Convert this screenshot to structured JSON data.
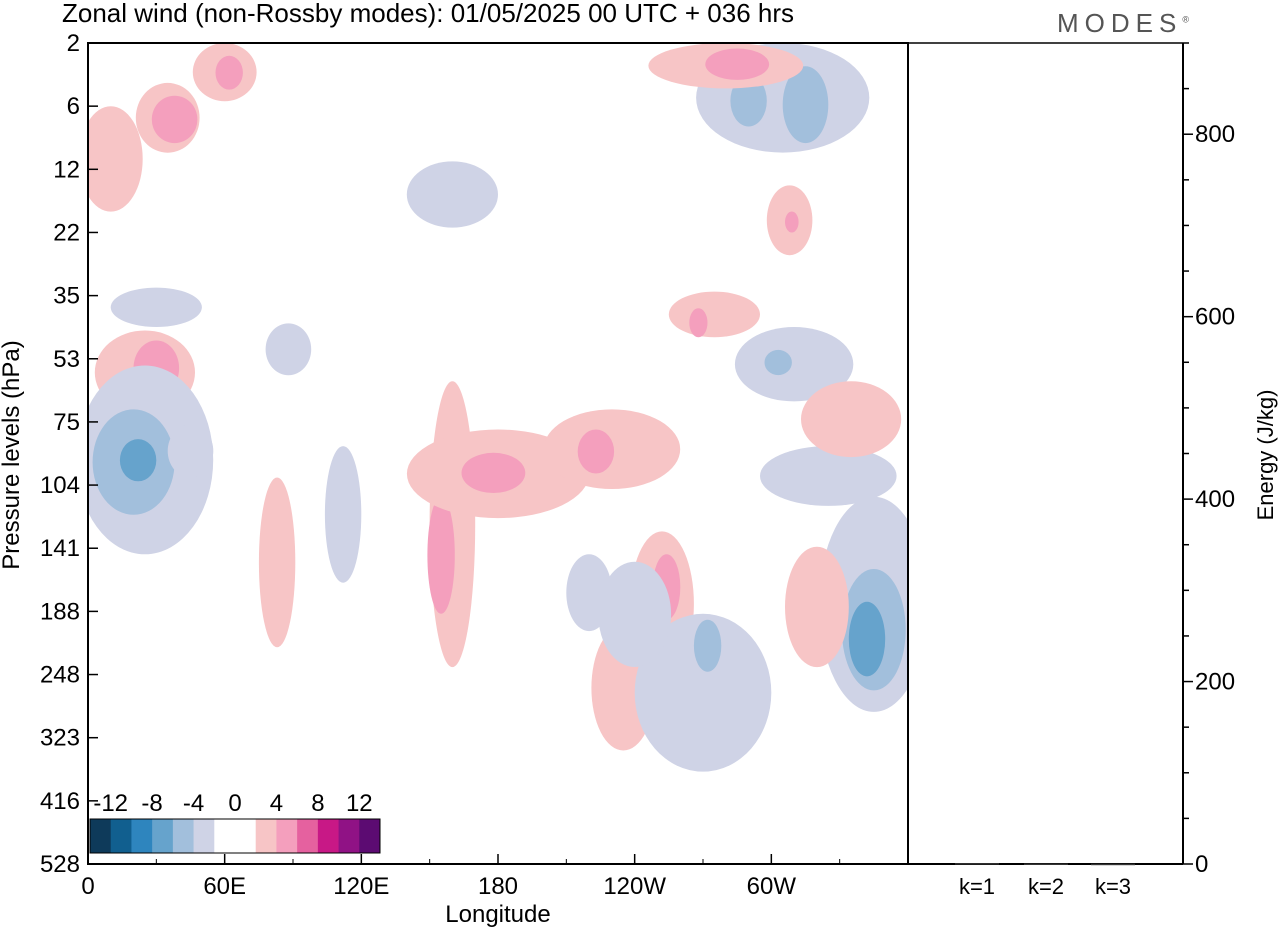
{
  "header": {
    "title": "Zonal wind (non-Rossby modes):  01/05/2025  00 UTC  + 036 hrs",
    "brand": "MODES",
    "brand_mark": "®"
  },
  "chart_data": [
    {
      "type": "heatmap",
      "title": "Zonal wind (non-Rossby modes):  01/05/2025  00 UTC  + 036 hrs",
      "xlabel": "Longitude",
      "ylabel": "Pressure levels (hPa)",
      "x_ticks": [
        "0",
        "60E",
        "120E",
        "180",
        "120W",
        "60W"
      ],
      "x_tick_deg": [
        0,
        60,
        120,
        180,
        240,
        300
      ],
      "xlim_deg": [
        0,
        360
      ],
      "y_ticks": [
        "2",
        "6",
        "12",
        "22",
        "35",
        "53",
        "75",
        "104",
        "141",
        "188",
        "248",
        "323",
        "416",
        "528"
      ],
      "colorbar": {
        "labels": [
          "-12",
          "-8",
          "-4",
          "0",
          "4",
          "8",
          "12"
        ],
        "colors": [
          "#0e3a5a",
          "#115f8f",
          "#2e85be",
          "#66a3cc",
          "#a2bfdc",
          "#cfd3e6",
          "#ffffff",
          "#ffffff",
          "#f7c5c6",
          "#f49fbd",
          "#e5619f",
          "#c81886",
          "#901285",
          "#5c0b72"
        ]
      },
      "regions": [
        {
          "sign": "pos",
          "level": 1,
          "lon": 10,
          "p": 12,
          "dlon": 14,
          "dp": 6
        },
        {
          "sign": "pos",
          "level": 1,
          "lon": 35,
          "p": 7,
          "dlon": 14,
          "dp": 3
        },
        {
          "sign": "pos",
          "level": 2,
          "lon": 38,
          "p": 7,
          "dlon": 10,
          "dp": 2
        },
        {
          "sign": "pos",
          "level": 1,
          "lon": 60,
          "p": 3.5,
          "dlon": 14,
          "dp": 2
        },
        {
          "sign": "pos",
          "level": 2,
          "lon": 62,
          "p": 3.5,
          "dlon": 6,
          "dp": 1
        },
        {
          "sign": "pos",
          "level": 1,
          "lon": 25,
          "p": 58,
          "dlon": 22,
          "dp": 14
        },
        {
          "sign": "pos",
          "level": 2,
          "lon": 30,
          "p": 56,
          "dlon": 10,
          "dp": 9
        },
        {
          "sign": "neg",
          "level": 1,
          "lon": 25,
          "p": 100,
          "dlon": 30,
          "dp": 45
        },
        {
          "sign": "neg",
          "level": 2,
          "lon": 20,
          "p": 95,
          "dlon": 18,
          "dp": 25
        },
        {
          "sign": "neg",
          "level": 3,
          "lon": 22,
          "p": 92,
          "dlon": 8,
          "dp": 10
        },
        {
          "sign": "pos",
          "level": 1,
          "lon": 160,
          "p": 150,
          "dlon": 10,
          "dp": 90
        },
        {
          "sign": "pos",
          "level": 2,
          "lon": 155,
          "p": 150,
          "dlon": 6,
          "dp": 40
        },
        {
          "sign": "pos",
          "level": 1,
          "lon": 180,
          "p": 100,
          "dlon": 40,
          "dp": 22
        },
        {
          "sign": "pos",
          "level": 2,
          "lon": 178,
          "p": 98,
          "dlon": 14,
          "dp": 10
        },
        {
          "sign": "pos",
          "level": 1,
          "lon": 230,
          "p": 88,
          "dlon": 30,
          "dp": 18
        },
        {
          "sign": "pos",
          "level": 2,
          "lon": 223,
          "p": 88,
          "dlon": 8,
          "dp": 10
        },
        {
          "sign": "pos",
          "level": 1,
          "lon": 252,
          "p": 190,
          "dlon": 14,
          "dp": 60
        },
        {
          "sign": "pos",
          "level": 2,
          "lon": 254,
          "p": 170,
          "dlon": 6,
          "dp": 25
        },
        {
          "sign": "pos",
          "level": 1,
          "lon": 235,
          "p": 270,
          "dlon": 14,
          "dp": 70
        },
        {
          "sign": "neg",
          "level": 1,
          "lon": 270,
          "p": 280,
          "dlon": 30,
          "dp": 90
        },
        {
          "sign": "neg",
          "level": 2,
          "lon": 272,
          "p": 220,
          "dlon": 6,
          "dp": 25
        },
        {
          "sign": "neg",
          "level": 1,
          "lon": 240,
          "p": 195,
          "dlon": 16,
          "dp": 45
        },
        {
          "sign": "neg",
          "level": 1,
          "lon": 345,
          "p": 200,
          "dlon": 24,
          "dp": 90
        },
        {
          "sign": "neg",
          "level": 2,
          "lon": 345,
          "p": 210,
          "dlon": 14,
          "dp": 55
        },
        {
          "sign": "neg",
          "level": 3,
          "lon": 342,
          "p": 215,
          "dlon": 8,
          "dp": 35
        },
        {
          "sign": "neg",
          "level": 1,
          "lon": 325,
          "p": 100,
          "dlon": 30,
          "dp": 15
        },
        {
          "sign": "neg",
          "level": 1,
          "lon": 310,
          "p": 55,
          "dlon": 26,
          "dp": 12
        },
        {
          "sign": "neg",
          "level": 2,
          "lon": 303,
          "p": 54,
          "dlon": 6,
          "dp": 4
        },
        {
          "sign": "pos",
          "level": 1,
          "lon": 320,
          "p": 190,
          "dlon": 14,
          "dp": 50
        },
        {
          "sign": "pos",
          "level": 1,
          "lon": 335,
          "p": 75,
          "dlon": 22,
          "dp": 15
        },
        {
          "sign": "neg",
          "level": 1,
          "lon": 305,
          "p": 6,
          "dlon": 38,
          "dp": 4
        },
        {
          "sign": "neg",
          "level": 2,
          "lon": 290,
          "p": 5.5,
          "dlon": 8,
          "dp": 2
        },
        {
          "sign": "neg",
          "level": 2,
          "lon": 315,
          "p": 6,
          "dlon": 10,
          "dp": 3
        },
        {
          "sign": "pos",
          "level": 1,
          "lon": 280,
          "p": 3.2,
          "dlon": 34,
          "dp": 1.2
        },
        {
          "sign": "pos",
          "level": 2,
          "lon": 285,
          "p": 3,
          "dlon": 14,
          "dp": 0.8
        },
        {
          "sign": "pos",
          "level": 1,
          "lon": 308,
          "p": 20,
          "dlon": 10,
          "dp": 6
        },
        {
          "sign": "pos",
          "level": 2,
          "lon": 309,
          "p": 20,
          "dlon": 3,
          "dp": 2
        },
        {
          "sign": "pos",
          "level": 1,
          "lon": 275,
          "p": 40,
          "dlon": 20,
          "dp": 6
        },
        {
          "sign": "pos",
          "level": 2,
          "lon": 268,
          "p": 42,
          "dlon": 4,
          "dp": 4
        },
        {
          "sign": "neg",
          "level": 1,
          "lon": 160,
          "p": 16,
          "dlon": 20,
          "dp": 5
        },
        {
          "sign": "neg",
          "level": 1,
          "lon": 30,
          "p": 38,
          "dlon": 20,
          "dp": 5
        },
        {
          "sign": "neg",
          "level": 1,
          "lon": 112,
          "p": 125,
          "dlon": 8,
          "dp": 40
        },
        {
          "sign": "pos",
          "level": 1,
          "lon": 83,
          "p": 160,
          "dlon": 8,
          "dp": 60
        },
        {
          "sign": "neg",
          "level": 1,
          "lon": 220,
          "p": 175,
          "dlon": 10,
          "dp": 30
        },
        {
          "sign": "neg",
          "level": 1,
          "lon": 45,
          "p": 88,
          "dlon": 10,
          "dp": 12
        },
        {
          "sign": "neg",
          "level": 1,
          "lon": 88,
          "p": 50,
          "dlon": 10,
          "dp": 8
        }
      ]
    },
    {
      "type": "bar",
      "ylabel": "Energy (J/kg)",
      "categories": [
        "k=1",
        "k=2",
        "k=3"
      ],
      "values": [
        1,
        0.5,
        0.3
      ],
      "ylim": [
        0,
        900
      ],
      "y_ticks": [
        0,
        200,
        400,
        600,
        800
      ]
    }
  ]
}
